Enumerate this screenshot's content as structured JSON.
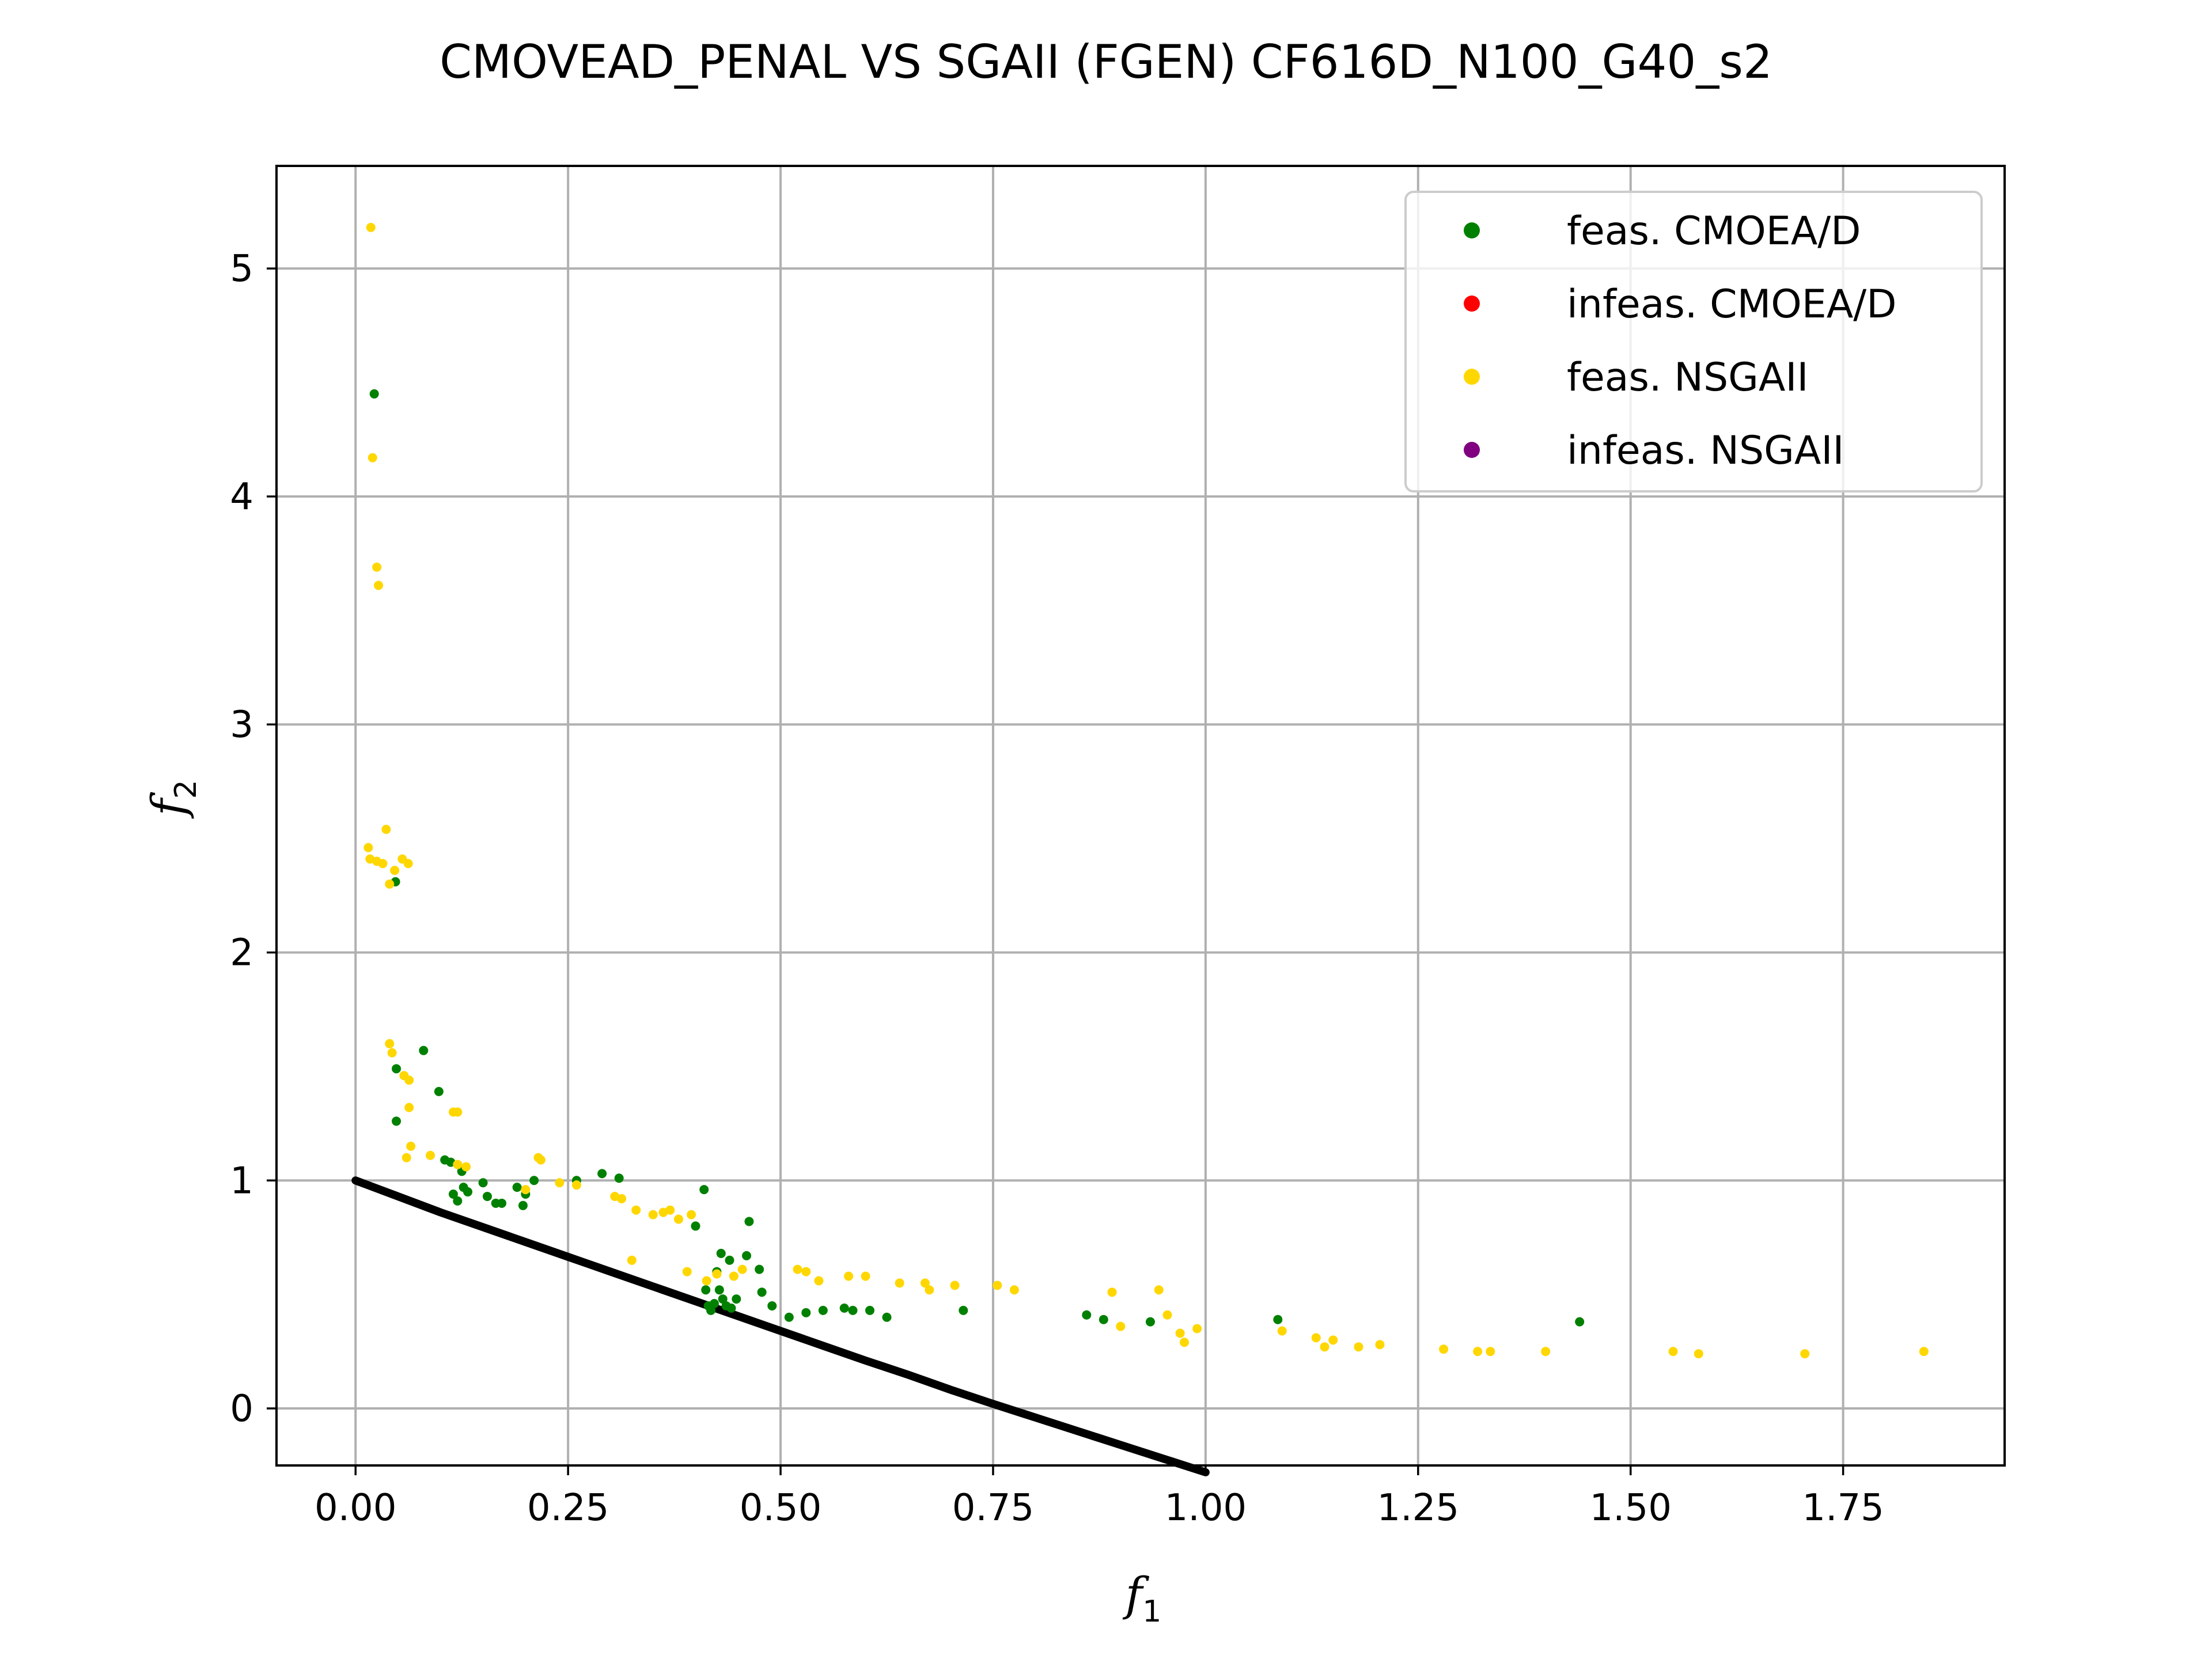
{
  "chart_data": {
    "type": "scatter",
    "title": "CMOVEAD_PENAL VS SGAII (FGEN) CF616D_N100_G40_s2",
    "xlabel": "f",
    "xlabel_sub": "1",
    "ylabel": "f",
    "ylabel_sub": "2",
    "xlim": [
      -0.093,
      1.94
    ],
    "ylim": [
      -0.25,
      5.45
    ],
    "xticks": [
      "0.00",
      "0.25",
      "0.50",
      "0.75",
      "1.00",
      "1.25",
      "1.50",
      "1.75"
    ],
    "yticks": [
      "0",
      "1",
      "2",
      "3",
      "4",
      "5"
    ],
    "xtick_values": [
      0,
      0.25,
      0.5,
      0.75,
      1.0,
      1.25,
      1.5,
      1.75
    ],
    "ytick_values": [
      0,
      1,
      2,
      3,
      4,
      5
    ],
    "grid": true,
    "legend_position": "top-right",
    "legend": [
      {
        "label": "feas. CMOEA/D",
        "color": "#008000"
      },
      {
        "label": "infeas. CMOEA/D",
        "color": "#ff0000"
      },
      {
        "label": "feas. NSGAII",
        "color": "#ffd700"
      },
      {
        "label": "infeas. NSGAII",
        "color": "#800080"
      }
    ],
    "pareto_front": {
      "color": "#000000",
      "points": [
        [
          0,
          1.0
        ],
        [
          0.05,
          0.93
        ],
        [
          0.1,
          0.86
        ],
        [
          0.15,
          0.795
        ],
        [
          0.2,
          0.73
        ],
        [
          0.25,
          0.665
        ],
        [
          0.3,
          0.6
        ],
        [
          0.35,
          0.535
        ],
        [
          0.4,
          0.47
        ],
        [
          0.45,
          0.405
        ],
        [
          0.5,
          0.34
        ],
        [
          0.55,
          0.275
        ],
        [
          0.6,
          0.21
        ],
        [
          0.65,
          0.148
        ],
        [
          0.7,
          0.082
        ],
        [
          0.75,
          0.02
        ],
        [
          0.8,
          -0.04
        ],
        [
          0.85,
          -0.1
        ],
        [
          0.9,
          -0.16
        ],
        [
          0.95,
          -0.22
        ],
        [
          1.0,
          -0.28
        ]
      ]
    },
    "series": [
      {
        "name": "feas. CMOEA/D",
        "color": "#008000",
        "points": [
          [
            0.022,
            4.45
          ],
          [
            0.047,
            2.31
          ],
          [
            0.048,
            1.49
          ],
          [
            0.048,
            1.26
          ],
          [
            0.08,
            1.57
          ],
          [
            0.098,
            1.39
          ],
          [
            0.105,
            1.09
          ],
          [
            0.112,
            1.08
          ],
          [
            0.115,
            0.94
          ],
          [
            0.12,
            0.91
          ],
          [
            0.125,
            1.04
          ],
          [
            0.127,
            0.97
          ],
          [
            0.132,
            0.95
          ],
          [
            0.15,
            0.99
          ],
          [
            0.155,
            0.93
          ],
          [
            0.165,
            0.9
          ],
          [
            0.172,
            0.9
          ],
          [
            0.19,
            0.97
          ],
          [
            0.197,
            0.89
          ],
          [
            0.2,
            0.94
          ],
          [
            0.21,
            1.0
          ],
          [
            0.26,
            1.0
          ],
          [
            0.29,
            1.03
          ],
          [
            0.31,
            1.01
          ],
          [
            0.4,
            0.8
          ],
          [
            0.41,
            0.96
          ],
          [
            0.412,
            0.52
          ],
          [
            0.415,
            0.45
          ],
          [
            0.418,
            0.43
          ],
          [
            0.422,
            0.46
          ],
          [
            0.425,
            0.6
          ],
          [
            0.428,
            0.52
          ],
          [
            0.43,
            0.68
          ],
          [
            0.432,
            0.48
          ],
          [
            0.436,
            0.45
          ],
          [
            0.44,
            0.65
          ],
          [
            0.442,
            0.44
          ],
          [
            0.448,
            0.48
          ],
          [
            0.46,
            0.67
          ],
          [
            0.463,
            0.82
          ],
          [
            0.475,
            0.61
          ],
          [
            0.478,
            0.51
          ],
          [
            0.49,
            0.45
          ],
          [
            0.51,
            0.4
          ],
          [
            0.53,
            0.42
          ],
          [
            0.55,
            0.43
          ],
          [
            0.575,
            0.44
          ],
          [
            0.585,
            0.43
          ],
          [
            0.605,
            0.43
          ],
          [
            0.625,
            0.4
          ],
          [
            0.715,
            0.43
          ],
          [
            0.86,
            0.41
          ],
          [
            0.88,
            0.39
          ],
          [
            0.935,
            0.38
          ],
          [
            1.085,
            0.39
          ],
          [
            1.44,
            0.38
          ]
        ]
      },
      {
        "name": "feas. NSGAII",
        "color": "#ffd700",
        "points": [
          [
            0.018,
            5.18
          ],
          [
            0.02,
            4.17
          ],
          [
            0.025,
            3.69
          ],
          [
            0.027,
            3.61
          ],
          [
            0.015,
            2.46
          ],
          [
            0.017,
            2.41
          ],
          [
            0.025,
            2.4
          ],
          [
            0.032,
            2.39
          ],
          [
            0.036,
            2.54
          ],
          [
            0.04,
            2.3
          ],
          [
            0.046,
            2.36
          ],
          [
            0.055,
            2.41
          ],
          [
            0.062,
            2.39
          ],
          [
            0.04,
            1.6
          ],
          [
            0.043,
            1.56
          ],
          [
            0.057,
            1.46
          ],
          [
            0.063,
            1.44
          ],
          [
            0.063,
            1.32
          ],
          [
            0.065,
            1.15
          ],
          [
            0.06,
            1.1
          ],
          [
            0.088,
            1.11
          ],
          [
            0.115,
            1.3
          ],
          [
            0.12,
            1.3
          ],
          [
            0.12,
            1.07
          ],
          [
            0.13,
            1.06
          ],
          [
            0.215,
            1.1
          ],
          [
            0.218,
            1.09
          ],
          [
            0.2,
            0.96
          ],
          [
            0.24,
            0.99
          ],
          [
            0.26,
            0.98
          ],
          [
            0.305,
            0.93
          ],
          [
            0.313,
            0.92
          ],
          [
            0.33,
            0.87
          ],
          [
            0.35,
            0.85
          ],
          [
            0.362,
            0.86
          ],
          [
            0.37,
            0.87
          ],
          [
            0.38,
            0.83
          ],
          [
            0.395,
            0.85
          ],
          [
            0.325,
            0.65
          ],
          [
            0.39,
            0.6
          ],
          [
            0.413,
            0.56
          ],
          [
            0.425,
            0.59
          ],
          [
            0.445,
            0.58
          ],
          [
            0.455,
            0.61
          ],
          [
            0.52,
            0.61
          ],
          [
            0.53,
            0.6
          ],
          [
            0.545,
            0.56
          ],
          [
            0.58,
            0.58
          ],
          [
            0.6,
            0.58
          ],
          [
            0.64,
            0.55
          ],
          [
            0.67,
            0.55
          ],
          [
            0.675,
            0.52
          ],
          [
            0.705,
            0.54
          ],
          [
            0.755,
            0.54
          ],
          [
            0.775,
            0.52
          ],
          [
            0.89,
            0.51
          ],
          [
            0.9,
            0.36
          ],
          [
            0.945,
            0.52
          ],
          [
            0.955,
            0.41
          ],
          [
            0.97,
            0.33
          ],
          [
            0.975,
            0.29
          ],
          [
            0.99,
            0.35
          ],
          [
            1.09,
            0.34
          ],
          [
            1.13,
            0.31
          ],
          [
            1.14,
            0.27
          ],
          [
            1.15,
            0.3
          ],
          [
            1.18,
            0.27
          ],
          [
            1.205,
            0.28
          ],
          [
            1.28,
            0.26
          ],
          [
            1.32,
            0.25
          ],
          [
            1.335,
            0.25
          ],
          [
            1.4,
            0.25
          ],
          [
            1.55,
            0.25
          ],
          [
            1.58,
            0.24
          ],
          [
            1.705,
            0.24
          ],
          [
            1.845,
            0.25
          ]
        ]
      },
      {
        "name": "infeas. CMOEA/D",
        "color": "#ff0000",
        "points": []
      },
      {
        "name": "infeas. NSGAII",
        "color": "#800080",
        "points": []
      }
    ]
  }
}
